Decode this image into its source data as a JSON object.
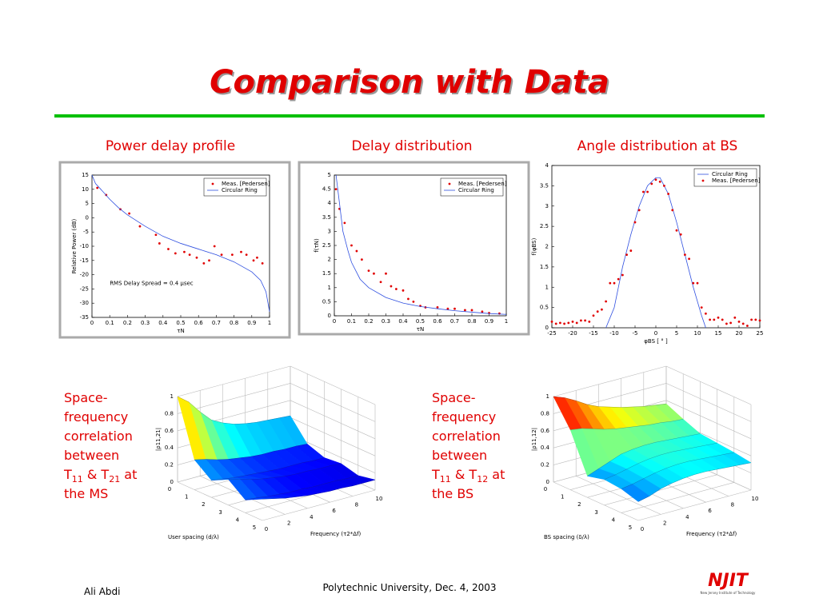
{
  "slide": {
    "title": "Comparison with Data",
    "captions": [
      "Power delay profile",
      "Delay distribution",
      "Angle distribution at BS"
    ],
    "caption_ms": [
      "Space-",
      "frequency",
      "correlation",
      "between",
      [
        "T",
        "11",
        " & T",
        "21",
        " at"
      ],
      "the MS"
    ],
    "caption_bs": [
      "Space-",
      "frequency",
      "correlation",
      "between",
      [
        "T",
        "11",
        " & T",
        "12",
        " at"
      ],
      "the BS"
    ],
    "footer_left": "Ali Abdi",
    "footer_center": "Polytechnic University, Dec. 4, 2003",
    "logo": "NJIT",
    "logo_sub": "New Jersey Institute of Technology"
  },
  "chart_data": [
    {
      "type": "line",
      "xlabel": "τN",
      "ylabel": "Relative Power (dB)",
      "annotation": "RMS Delay Spread = 0.4 µsec",
      "xlim": [
        0,
        1
      ],
      "xticks": [
        0,
        0.1,
        0.2,
        0.3,
        0.4,
        0.5,
        0.6,
        0.7,
        0.8,
        0.9,
        1
      ],
      "ylim": [
        -35,
        15
      ],
      "yticks": [
        15,
        10,
        5,
        0,
        -5,
        -10,
        -15,
        -20,
        -25,
        -30,
        -35
      ],
      "legend": "upper right",
      "series": [
        {
          "name": "Meas. [Pedersen]",
          "color": "#e00000",
          "style": "markers",
          "x": [
            0.03,
            0.08,
            0.16,
            0.21,
            0.27,
            0.36,
            0.38,
            0.43,
            0.47,
            0.52,
            0.55,
            0.59,
            0.63,
            0.66,
            0.69,
            0.73,
            0.79,
            0.84,
            0.87,
            0.91,
            0.93,
            0.96
          ],
          "values": [
            10.5,
            8,
            3,
            1.5,
            -3,
            -6,
            -9,
            -11,
            -12.5,
            -12,
            -13,
            -14,
            -16,
            -15,
            -10,
            -13,
            -13,
            -12,
            -13,
            -15,
            -14,
            -16
          ]
        },
        {
          "name": "Circular Ring",
          "color": "#3050e0",
          "style": "line",
          "x": [
            0,
            0.02,
            0.05,
            0.1,
            0.15,
            0.2,
            0.3,
            0.4,
            0.5,
            0.6,
            0.7,
            0.8,
            0.9,
            0.95,
            0.98,
            1
          ],
          "values": [
            15,
            12,
            10,
            6.5,
            3.5,
            1,
            -3,
            -6.5,
            -9,
            -11,
            -13,
            -15.5,
            -19,
            -22,
            -26,
            -33
          ]
        }
      ]
    },
    {
      "type": "line",
      "xlabel": "τN",
      "ylabel": "f(τN)",
      "xlim": [
        0,
        1
      ],
      "xticks": [
        0,
        0.1,
        0.2,
        0.3,
        0.4,
        0.5,
        0.6,
        0.7,
        0.8,
        0.9,
        1
      ],
      "ylim": [
        0,
        5
      ],
      "yticks": [
        0,
        0.5,
        1,
        1.5,
        2,
        2.5,
        3,
        3.5,
        4,
        4.5,
        5
      ],
      "legend": "upper right",
      "series": [
        {
          "name": "Meas. [Pedersen]",
          "color": "#e00000",
          "style": "markers",
          "x": [
            0.01,
            0.03,
            0.06,
            0.1,
            0.13,
            0.16,
            0.2,
            0.23,
            0.27,
            0.3,
            0.33,
            0.36,
            0.4,
            0.43,
            0.46,
            0.5,
            0.53,
            0.6,
            0.66,
            0.7,
            0.76,
            0.8,
            0.86,
            0.9,
            0.96
          ],
          "values": [
            4.5,
            3.8,
            3.3,
            2.5,
            2.3,
            2,
            1.6,
            1.5,
            1.2,
            1.5,
            1.05,
            0.95,
            0.9,
            0.6,
            0.5,
            0.35,
            0.3,
            0.3,
            0.25,
            0.25,
            0.2,
            0.2,
            0.15,
            0.1,
            0.08
          ]
        },
        {
          "name": "Circular Ring",
          "color": "#3050e0",
          "style": "line",
          "x": [
            0.01,
            0.03,
            0.05,
            0.08,
            0.1,
            0.15,
            0.2,
            0.3,
            0.4,
            0.5,
            0.6,
            0.7,
            0.8,
            0.9,
            1
          ],
          "values": [
            5,
            4,
            3,
            2.3,
            1.9,
            1.3,
            1,
            0.65,
            0.45,
            0.33,
            0.25,
            0.18,
            0.13,
            0.08,
            0.05
          ]
        }
      ]
    },
    {
      "type": "line",
      "xlabel": "φBS [ ° ]",
      "ylabel": "f(φBS)",
      "xlim": [
        -25,
        25
      ],
      "xticks": [
        -25,
        -20,
        -15,
        -10,
        -5,
        0,
        5,
        10,
        15,
        20,
        25
      ],
      "ylim": [
        0,
        4
      ],
      "yticks": [
        0,
        0.5,
        1,
        1.5,
        2,
        2.5,
        3,
        3.5,
        4
      ],
      "legend": "upper right",
      "series": [
        {
          "name": "Circular Ring",
          "color": "#3050e0",
          "style": "line",
          "x": [
            -12,
            -10,
            -8,
            -6,
            -4,
            -2,
            0,
            1,
            3,
            5,
            7,
            9,
            11,
            12
          ],
          "values": [
            0,
            0.5,
            1.5,
            2.3,
            3,
            3.5,
            3.7,
            3.7,
            3.3,
            2.6,
            1.8,
            1,
            0.3,
            0
          ]
        },
        {
          "name": "Meas. [Pedersen]",
          "color": "#e00000",
          "style": "markers",
          "x": [
            -25,
            -24,
            -23,
            -22,
            -21,
            -20,
            -19,
            -18,
            -17,
            -16,
            -15,
            -14,
            -13,
            -12,
            -11,
            -10,
            -9,
            -8,
            -7,
            -6,
            -5,
            -4,
            -3,
            -2,
            -1,
            0,
            1,
            2,
            3,
            4,
            5,
            6,
            7,
            8,
            9,
            10,
            11,
            12,
            13,
            14,
            15,
            16,
            17,
            18,
            19,
            20,
            21,
            22,
            23,
            24,
            25
          ],
          "values": [
            0.15,
            0.1,
            0.12,
            0.1,
            0.12,
            0.15,
            0.12,
            0.18,
            0.18,
            0.15,
            0.3,
            0.4,
            0.45,
            0.65,
            1.1,
            1.1,
            1.2,
            1.3,
            1.8,
            1.9,
            2.6,
            2.9,
            3.35,
            3.35,
            3.55,
            3.65,
            3.6,
            3.5,
            3.3,
            2.9,
            2.4,
            2.3,
            1.8,
            1.7,
            1.1,
            1.1,
            0.5,
            0.35,
            0.2,
            0.2,
            0.25,
            0.2,
            0.1,
            0.12,
            0.25,
            0.15,
            0.1,
            0.05,
            0.2,
            0.2,
            0.18
          ]
        }
      ]
    },
    {
      "type": "surface",
      "colormap": "jet",
      "zlabel": "|ρ11,21|",
      "xlabel": "User spacing (d/λ)",
      "ylabel": "Frequency (τ2*Δf)",
      "xticks": [
        0,
        1,
        2,
        3,
        4,
        5
      ],
      "yticks": [
        0,
        2,
        4,
        6,
        8,
        10
      ],
      "zticks": [
        0,
        0.2,
        0.4,
        0.6,
        0.8,
        1
      ],
      "xlim": [
        0,
        5
      ],
      "ylim": [
        0,
        10
      ],
      "zlim": [
        0,
        1
      ],
      "spacing": [
        0,
        1,
        2,
        3,
        4,
        5
      ],
      "frequency": [
        0,
        1,
        2,
        3,
        4,
        5,
        6,
        7,
        8,
        9,
        10
      ],
      "z": [
        [
          1,
          0.9,
          0.75,
          0.62,
          0.55,
          0.5,
          0.47,
          0.45,
          0.44,
          0.43,
          0.42
        ],
        [
          0.35,
          0.32,
          0.28,
          0.25,
          0.23,
          0.21,
          0.2,
          0.2,
          0.19,
          0.19,
          0.18
        ],
        [
          0.2,
          0.18,
          0.16,
          0.15,
          0.14,
          0.13,
          0.12,
          0.12,
          0.12,
          0.11,
          0.11
        ],
        [
          0.3,
          0.27,
          0.23,
          0.2,
          0.18,
          0.16,
          0.15,
          0.15,
          0.14,
          0.14,
          0.13
        ],
        [
          0.15,
          0.14,
          0.12,
          0.11,
          0.1,
          0.1,
          0.09,
          0.09,
          0.09,
          0.08,
          0.08
        ],
        [
          0.25,
          0.22,
          0.19,
          0.17,
          0.15,
          0.14,
          0.13,
          0.13,
          0.12,
          0.12,
          0.12
        ]
      ]
    },
    {
      "type": "surface",
      "colormap": "jet",
      "zlabel": "|ρ11,12|",
      "xlabel": "BS spacing (δ/λ)",
      "ylabel": "Frequency (τ2*Δf)",
      "xticks": [
        0,
        1,
        2,
        3,
        4,
        5
      ],
      "yticks": [
        0,
        2,
        4,
        6,
        8,
        10
      ],
      "zticks": [
        0,
        0.2,
        0.4,
        0.6,
        0.8,
        1
      ],
      "xlim": [
        0,
        5
      ],
      "ylim": [
        0,
        10
      ],
      "zlim": [
        0,
        1
      ],
      "spacing": [
        0,
        1,
        2,
        3,
        4,
        5
      ],
      "frequency": [
        0,
        1,
        2,
        3,
        4,
        5,
        6,
        7,
        8,
        9,
        10
      ],
      "z": [
        [
          1,
          0.95,
          0.88,
          0.8,
          0.74,
          0.7,
          0.66,
          0.63,
          0.6,
          0.58,
          0.56
        ],
        [
          0.7,
          0.68,
          0.64,
          0.6,
          0.57,
          0.55,
          0.53,
          0.51,
          0.5,
          0.48,
          0.47
        ],
        [
          0.25,
          0.3,
          0.35,
          0.4,
          0.42,
          0.43,
          0.43,
          0.42,
          0.41,
          0.4,
          0.39
        ],
        [
          0.3,
          0.32,
          0.35,
          0.38,
          0.4,
          0.41,
          0.41,
          0.4,
          0.39,
          0.38,
          0.37
        ],
        [
          0.28,
          0.3,
          0.33,
          0.36,
          0.38,
          0.39,
          0.39,
          0.38,
          0.37,
          0.36,
          0.35
        ],
        [
          0.22,
          0.25,
          0.3,
          0.33,
          0.35,
          0.36,
          0.36,
          0.35,
          0.34,
          0.33,
          0.32
        ]
      ]
    }
  ]
}
